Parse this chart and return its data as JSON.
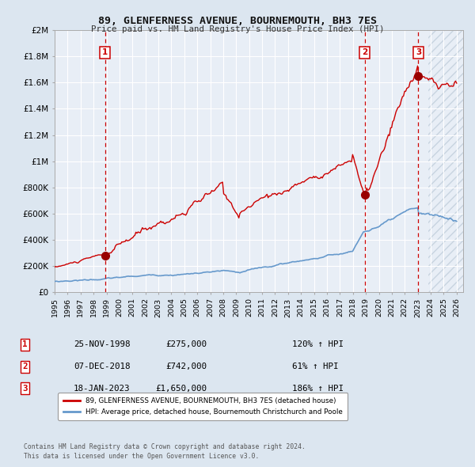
{
  "title": "89, GLENFERNESS AVENUE, BOURNEMOUTH, BH3 7ES",
  "subtitle": "Price paid vs. HM Land Registry's House Price Index (HPI)",
  "bg_color": "#dce6f0",
  "plot_bg_color": "#e8eef6",
  "hatch_color": "#c8d4e0",
  "grid_color": "#ffffff",
  "red_line_color": "#cc0000",
  "blue_line_color": "#6699cc",
  "sale_marker_color": "#990000",
  "sale_dates": [
    1998.9,
    2018.92,
    2023.05
  ],
  "sale_prices": [
    275000,
    742000,
    1650000
  ],
  "sale_labels": [
    "1",
    "2",
    "3"
  ],
  "sale_date_strs": [
    "25-NOV-1998",
    "07-DEC-2018",
    "18-JAN-2023"
  ],
  "sale_price_strs": [
    "£275,000",
    "£742,000",
    "£1,650,000"
  ],
  "sale_hpi_strs": [
    "120% ↑ HPI",
    "61% ↑ HPI",
    "186% ↑ HPI"
  ],
  "vline_color": "#cc0000",
  "ylim": [
    0,
    2000000
  ],
  "xlim_start": 1995.0,
  "xlim_end": 2026.5,
  "ytick_values": [
    0,
    200000,
    400000,
    600000,
    800000,
    1000000,
    1200000,
    1400000,
    1600000,
    1800000,
    2000000
  ],
  "ytick_labels": [
    "£0",
    "£200K",
    "£400K",
    "£600K",
    "£800K",
    "£1M",
    "£1.2M",
    "£1.4M",
    "£1.6M",
    "£1.8M",
    "£2M"
  ],
  "xtick_years": [
    1995,
    1996,
    1997,
    1998,
    1999,
    2000,
    2001,
    2002,
    2003,
    2004,
    2005,
    2006,
    2007,
    2008,
    2009,
    2010,
    2011,
    2012,
    2013,
    2014,
    2015,
    2016,
    2017,
    2018,
    2019,
    2020,
    2021,
    2022,
    2023,
    2024,
    2025,
    2026
  ],
  "legend_label_red": "89, GLENFERNESS AVENUE, BOURNEMOUTH, BH3 7ES (detached house)",
  "legend_label_blue": "HPI: Average price, detached house, Bournemouth Christchurch and Poole",
  "footnote1": "Contains HM Land Registry data © Crown copyright and database right 2024.",
  "footnote2": "This data is licensed under the Open Government Licence v3.0.",
  "hatch_start": 2023.8
}
